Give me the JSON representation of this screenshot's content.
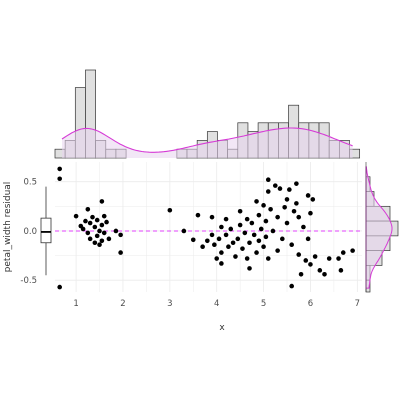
{
  "chart_data": {
    "type": "scatter",
    "title": "",
    "xlabel": "x",
    "ylabel": "petal_width residual",
    "xlim": [
      0.55,
      7.1
    ],
    "ylim": [
      -0.62,
      0.7
    ],
    "xticks": [
      1,
      2,
      3,
      4,
      5,
      6,
      7
    ],
    "yticks": [
      -0.5,
      0.0,
      0.5
    ],
    "ytick_labels": [
      "-0.5",
      "0.0",
      "0.5"
    ],
    "reference_line": {
      "y": 0,
      "style": "dashed",
      "color": "#e040fb"
    },
    "grid": true,
    "colors": {
      "points": "#000000",
      "density": "#d63bd6",
      "hist_fill": "#e0e0e0",
      "hist_stroke": "#333333",
      "shade": "#e8d4ef"
    },
    "points": [
      [
        0.65,
        0.63
      ],
      [
        0.65,
        0.53
      ],
      [
        0.65,
        -0.57
      ],
      [
        1.0,
        0.15
      ],
      [
        1.1,
        0.05
      ],
      [
        1.15,
        0.02
      ],
      [
        1.2,
        0.1
      ],
      [
        1.25,
        0.22
      ],
      [
        1.25,
        -0.02
      ],
      [
        1.3,
        0.08
      ],
      [
        1.3,
        -0.08
      ],
      [
        1.35,
        0.14
      ],
      [
        1.4,
        0.04
      ],
      [
        1.4,
        -0.12
      ],
      [
        1.45,
        0.11
      ],
      [
        1.45,
        -0.05
      ],
      [
        1.5,
        0.0
      ],
      [
        1.5,
        -0.14
      ],
      [
        1.55,
        0.3
      ],
      [
        1.55,
        0.06
      ],
      [
        1.55,
        -0.1
      ],
      [
        1.6,
        0.15
      ],
      [
        1.6,
        -0.02
      ],
      [
        1.65,
        0.09
      ],
      [
        1.7,
        -0.08
      ],
      [
        1.85,
        0.0
      ],
      [
        1.95,
        -0.04
      ],
      [
        1.95,
        -0.22
      ],
      [
        3.0,
        0.21
      ],
      [
        3.3,
        0.0
      ],
      [
        3.5,
        -0.09
      ],
      [
        3.6,
        0.16
      ],
      [
        3.7,
        -0.16
      ],
      [
        3.8,
        -0.1
      ],
      [
        3.9,
        0.14
      ],
      [
        3.9,
        -0.04
      ],
      [
        3.95,
        -0.14
      ],
      [
        4.0,
        -0.28
      ],
      [
        4.05,
        -0.08
      ],
      [
        4.1,
        0.04
      ],
      [
        4.1,
        -0.22
      ],
      [
        4.1,
        -0.33
      ],
      [
        4.2,
        0.12
      ],
      [
        4.2,
        -0.04
      ],
      [
        4.25,
        -0.16
      ],
      [
        4.3,
        0.02
      ],
      [
        4.35,
        -0.12
      ],
      [
        4.4,
        -0.26
      ],
      [
        4.45,
        -0.08
      ],
      [
        4.5,
        0.2
      ],
      [
        4.5,
        0.06
      ],
      [
        4.55,
        -0.18
      ],
      [
        4.6,
        -0.02
      ],
      [
        4.65,
        0.12
      ],
      [
        4.65,
        -0.28
      ],
      [
        4.7,
        -0.12
      ],
      [
        4.7,
        -0.38
      ],
      [
        4.75,
        0.08
      ],
      [
        4.8,
        -0.04
      ],
      [
        4.85,
        0.3
      ],
      [
        4.85,
        -0.22
      ],
      [
        4.9,
        0.16
      ],
      [
        4.9,
        -0.1
      ],
      [
        4.95,
        0.02
      ],
      [
        5.0,
        0.26
      ],
      [
        5.0,
        -0.16
      ],
      [
        5.05,
        0.1
      ],
      [
        5.05,
        -0.06
      ],
      [
        5.1,
        0.52
      ],
      [
        5.1,
        0.4
      ],
      [
        5.1,
        -0.28
      ],
      [
        5.15,
        0.22
      ],
      [
        5.2,
        0.0
      ],
      [
        5.25,
        0.46
      ],
      [
        5.3,
        0.14
      ],
      [
        5.3,
        -0.2
      ],
      [
        5.35,
        0.43
      ],
      [
        5.4,
        -0.08
      ],
      [
        5.45,
        0.24
      ],
      [
        5.5,
        0.32
      ],
      [
        5.5,
        0.08
      ],
      [
        5.55,
        0.42
      ],
      [
        5.6,
        -0.56
      ],
      [
        5.6,
        -0.14
      ],
      [
        5.65,
        0.2
      ],
      [
        5.7,
        0.48
      ],
      [
        5.7,
        0.28
      ],
      [
        5.75,
        0.14
      ],
      [
        5.75,
        -0.24
      ],
      [
        5.8,
        -0.44
      ],
      [
        5.85,
        0.04
      ],
      [
        5.9,
        -0.3
      ],
      [
        5.95,
        0.36
      ],
      [
        5.95,
        -0.08
      ],
      [
        6.0,
        0.18
      ],
      [
        6.0,
        -0.34
      ],
      [
        6.05,
        0.32
      ],
      [
        6.1,
        -0.26
      ],
      [
        6.2,
        -0.4
      ],
      [
        6.3,
        -0.44
      ],
      [
        6.4,
        -0.28
      ],
      [
        6.6,
        -0.28
      ],
      [
        6.65,
        -0.4
      ],
      [
        6.7,
        -0.22
      ],
      [
        6.9,
        -0.2
      ]
    ],
    "top_histogram": {
      "bin_edges": [
        0.55,
        7.05
      ],
      "bin_count": 30,
      "counts": [
        1,
        2,
        8,
        10,
        2,
        1,
        1,
        0,
        0,
        0,
        0,
        0,
        1,
        1,
        2,
        3,
        2,
        1,
        4,
        3,
        4,
        4,
        4,
        6,
        4,
        4,
        4,
        2,
        2,
        1
      ]
    },
    "box_summary": {
      "min": -0.45,
      "q1": -0.12,
      "median": -0.01,
      "q3": 0.13,
      "max": 0.45
    },
    "right_histogram": {
      "bins": [
        [
          0.4,
          0.55,
          1
        ],
        [
          0.25,
          0.4,
          2
        ],
        [
          0.1,
          0.25,
          6
        ],
        [
          -0.05,
          0.1,
          8
        ],
        [
          -0.2,
          -0.05,
          6
        ],
        [
          -0.35,
          -0.2,
          4
        ],
        [
          -0.5,
          -0.35,
          1
        ],
        [
          -0.62,
          -0.5,
          1
        ]
      ]
    }
  }
}
